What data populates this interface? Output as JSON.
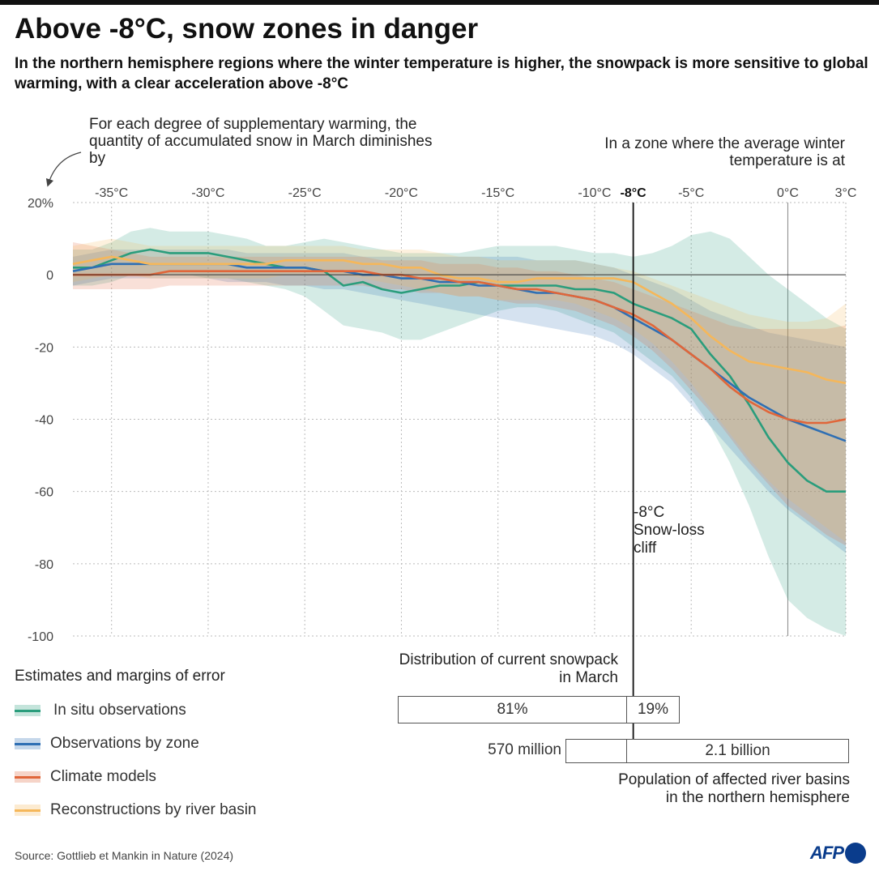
{
  "header": {
    "title": "Above -8°C,  snow zones in danger",
    "subtitle": "In the northern hemisphere regions where the winter temperature is higher,  the snowpack is more sensitive to global warming, with a clear acceleration above -8°C"
  },
  "annotations": {
    "y_axis_note": "For each degree of supplementary warming, the quantity of accumulated snow in March diminishes by",
    "x_axis_note": "In a zone where the average winter temperature is at",
    "cliff_label": [
      "-8°C",
      "Snow-loss",
      "cliff"
    ]
  },
  "legend": {
    "title": "Estimates and margins of error",
    "items": [
      {
        "label": "In situ observations",
        "color": "#2a9d7c"
      },
      {
        "label": "Observations by zone",
        "color": "#2f6fb3"
      },
      {
        "label": "Climate models",
        "color": "#e0663a"
      },
      {
        "label": "Reconstructions by river basin",
        "color": "#f5b75a"
      }
    ]
  },
  "distribution": {
    "label_line1": "Distribution of current snowpack",
    "label_line2": "in March",
    "left_share": "81%",
    "right_share": "19%"
  },
  "population": {
    "left_value": "570 million",
    "right_value": "2.1 billion",
    "label_line1": "Population of affected river basins",
    "label_line2": "in the northern hemisphere"
  },
  "footer": {
    "source": "Source: Gottlieb et Mankin in Nature (2024)",
    "logo": "AFP"
  },
  "chart_data": {
    "type": "line",
    "x_label": "",
    "y_label": "",
    "xlim": [
      -37,
      3
    ],
    "ylim": [
      -100,
      20
    ],
    "x_ticks": [
      -35,
      -30,
      -25,
      -20,
      -15,
      -10,
      -8,
      -5,
      0,
      3
    ],
    "x_tick_labels": [
      "-35°C",
      "-30°C",
      "-25°C",
      "-20°C",
      "-15°C",
      "-10°C",
      "-8°C",
      "-5°C",
      "0°C",
      "3°C"
    ],
    "y_ticks": [
      20,
      0,
      -20,
      -40,
      -60,
      -80,
      -100
    ],
    "y_tick_labels": [
      "20%",
      "0",
      "-20",
      "-40",
      "-60",
      "-80",
      "-100"
    ],
    "reference_line_x": -8,
    "grid": true,
    "series": [
      {
        "name": "In situ observations",
        "color": "#2a9d7c",
        "x": [
          -37,
          -36,
          -35,
          -34,
          -33,
          -32,
          -31,
          -30,
          -29,
          -28,
          -27,
          -26,
          -25,
          -24,
          -23,
          -22,
          -21,
          -20,
          -19,
          -18,
          -17,
          -16,
          -15,
          -14,
          -13,
          -12,
          -11,
          -10,
          -9,
          -8,
          -7,
          -6,
          -5,
          -4,
          -3,
          -2,
          -1,
          0,
          1,
          2,
          3
        ],
        "y": [
          2,
          2,
          4,
          6,
          7,
          6,
          6,
          6,
          5,
          4,
          3,
          2,
          2,
          1,
          -3,
          -2,
          -4,
          -5,
          -4,
          -3,
          -3,
          -2,
          -3,
          -3,
          -3,
          -3,
          -4,
          -4,
          -5,
          -8,
          -10,
          -12,
          -15,
          -22,
          -28,
          -36,
          -45,
          -52,
          -57,
          -60,
          -60
        ],
        "lower": [
          -3,
          -3,
          -2,
          0,
          0,
          0,
          0,
          -1,
          -1,
          -2,
          -3,
          -4,
          -6,
          -10,
          -14,
          -15,
          -16,
          -18,
          -18,
          -16,
          -14,
          -12,
          -10,
          -9,
          -9,
          -10,
          -12,
          -14,
          -16,
          -20,
          -24,
          -28,
          -34,
          -42,
          -52,
          -64,
          -78,
          -90,
          -95,
          -98,
          -100
        ],
        "upper": [
          7,
          7,
          9,
          12,
          13,
          12,
          12,
          12,
          11,
          10,
          8,
          8,
          9,
          10,
          9,
          8,
          7,
          6,
          6,
          6,
          6,
          7,
          8,
          8,
          8,
          8,
          7,
          6,
          6,
          5,
          6,
          8,
          11,
          12,
          10,
          5,
          0,
          -4,
          -8,
          -12,
          -15
        ]
      },
      {
        "name": "Observations by zone",
        "color": "#2f6fb3",
        "x": [
          -37,
          -36,
          -35,
          -34,
          -33,
          -32,
          -31,
          -30,
          -29,
          -28,
          -27,
          -26,
          -25,
          -24,
          -23,
          -22,
          -21,
          -20,
          -19,
          -18,
          -17,
          -16,
          -15,
          -14,
          -13,
          -12,
          -11,
          -10,
          -9,
          -8,
          -7,
          -6,
          -5,
          -4,
          -3,
          -2,
          -1,
          0,
          1,
          2,
          3
        ],
        "y": [
          1,
          2,
          3,
          3,
          3,
          3,
          3,
          3,
          3,
          2,
          2,
          2,
          2,
          1,
          1,
          0,
          0,
          -1,
          -1,
          -2,
          -2,
          -3,
          -3,
          -4,
          -5,
          -5,
          -6,
          -7,
          -9,
          -12,
          -15,
          -18,
          -22,
          -26,
          -30,
          -34,
          -37,
          -40,
          -42,
          -44,
          -46
        ],
        "lower": [
          -3,
          -2,
          -1,
          -1,
          -1,
          -1,
          -1,
          -1,
          -2,
          -2,
          -2,
          -3,
          -3,
          -4,
          -4,
          -5,
          -6,
          -7,
          -8,
          -9,
          -10,
          -11,
          -12,
          -13,
          -14,
          -15,
          -16,
          -17,
          -19,
          -22,
          -26,
          -30,
          -36,
          -42,
          -48,
          -54,
          -60,
          -65,
          -69,
          -73,
          -77
        ],
        "upper": [
          5,
          6,
          7,
          7,
          7,
          7,
          7,
          7,
          7,
          6,
          6,
          6,
          6,
          6,
          6,
          5,
          5,
          5,
          5,
          5,
          5,
          5,
          5,
          5,
          4,
          4,
          4,
          3,
          2,
          0,
          -2,
          -4,
          -7,
          -10,
          -12,
          -14,
          -16,
          -17,
          -18,
          -19,
          -20
        ]
      },
      {
        "name": "Climate models",
        "color": "#e0663a",
        "x": [
          -37,
          -36,
          -35,
          -34,
          -33,
          -32,
          -31,
          -30,
          -29,
          -28,
          -27,
          -26,
          -25,
          -24,
          -23,
          -22,
          -21,
          -20,
          -19,
          -18,
          -17,
          -16,
          -15,
          -14,
          -13,
          -12,
          -11,
          -10,
          -9,
          -8,
          -7,
          -6,
          -5,
          -4,
          -3,
          -2,
          -1,
          0,
          1,
          2,
          3
        ],
        "y": [
          0,
          0,
          0,
          0,
          0,
          1,
          1,
          1,
          1,
          1,
          1,
          1,
          1,
          1,
          1,
          1,
          0,
          0,
          -1,
          -1,
          -2,
          -2,
          -3,
          -4,
          -4,
          -5,
          -6,
          -7,
          -9,
          -11,
          -14,
          -18,
          -22,
          -26,
          -31,
          -35,
          -38,
          -40,
          -41,
          -41,
          -40
        ],
        "lower": [
          -4,
          -4,
          -4,
          -4,
          -4,
          -3,
          -3,
          -3,
          -3,
          -3,
          -3,
          -3,
          -3,
          -3,
          -3,
          -3,
          -4,
          -4,
          -5,
          -5,
          -6,
          -6,
          -7,
          -8,
          -8,
          -9,
          -10,
          -12,
          -14,
          -17,
          -21,
          -26,
          -32,
          -38,
          -45,
          -52,
          -58,
          -64,
          -68,
          -72,
          -75
        ],
        "upper": [
          9,
          8,
          7,
          6,
          5,
          5,
          5,
          5,
          5,
          5,
          5,
          5,
          5,
          5,
          5,
          5,
          4,
          4,
          4,
          3,
          3,
          3,
          2,
          2,
          1,
          1,
          0,
          -1,
          -2,
          -4,
          -6,
          -8,
          -10,
          -12,
          -14,
          -15,
          -15,
          -15,
          -15,
          -15,
          -14
        ]
      },
      {
        "name": "Reconstructions by river basin",
        "color": "#f5b75a",
        "x": [
          -37,
          -36,
          -35,
          -34,
          -33,
          -32,
          -31,
          -30,
          -29,
          -28,
          -27,
          -26,
          -25,
          -24,
          -23,
          -22,
          -21,
          -20,
          -19,
          -18,
          -17,
          -16,
          -15,
          -14,
          -13,
          -12,
          -11,
          -10,
          -9,
          -8,
          -7,
          -6,
          -5,
          -4,
          -3,
          -2,
          -1,
          0,
          1,
          2,
          3
        ],
        "y": [
          3,
          4,
          5,
          4,
          3,
          3,
          3,
          3,
          3,
          3,
          3,
          4,
          4,
          4,
          4,
          3,
          3,
          2,
          2,
          0,
          -1,
          -1,
          -2,
          -2,
          -1,
          -1,
          -1,
          -1,
          -1,
          -2,
          -5,
          -8,
          -12,
          -17,
          -21,
          -24,
          -25,
          -26,
          -27,
          -29,
          -30
        ],
        "lower": [
          -2,
          -1,
          0,
          0,
          -1,
          -1,
          -1,
          -1,
          -1,
          -1,
          -1,
          0,
          0,
          0,
          0,
          -1,
          -2,
          -3,
          -4,
          -5,
          -6,
          -6,
          -7,
          -7,
          -7,
          -7,
          -8,
          -10,
          -12,
          -15,
          -19,
          -24,
          -30,
          -37,
          -44,
          -51,
          -57,
          -62,
          -66,
          -70,
          -74
        ],
        "upper": [
          8,
          9,
          10,
          9,
          8,
          8,
          8,
          8,
          8,
          8,
          8,
          8,
          8,
          8,
          8,
          7,
          7,
          7,
          7,
          6,
          5,
          5,
          4,
          4,
          4,
          4,
          4,
          3,
          2,
          1,
          -1,
          -3,
          -5,
          -7,
          -9,
          -11,
          -12,
          -13,
          -13,
          -12,
          -8
        ]
      }
    ]
  }
}
